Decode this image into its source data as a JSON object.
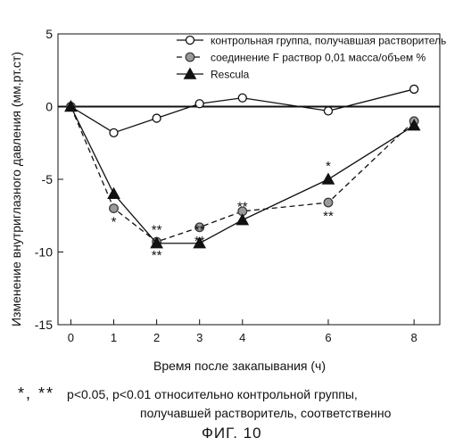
{
  "chart_data": {
    "type": "line",
    "xlabel": "Время после закапывания (ч)",
    "ylabel": "Изменение внутриглазного давления (мм.рт.ст)",
    "xlim": [
      -0.3,
      8.6
    ],
    "ylim": [
      -15,
      5
    ],
    "x_ticks": [
      0,
      1,
      2,
      3,
      4,
      6,
      8
    ],
    "y_ticks": [
      5,
      0,
      -5,
      -10,
      -15
    ],
    "y_tick_labels": [
      "5",
      "0",
      "-5",
      "-10",
      "-15"
    ],
    "grid": false,
    "legend_position": "top-right",
    "series": [
      {
        "name": "контрольная группа, получавшая растворитель",
        "marker": "open-circle",
        "line": "solid",
        "x": [
          0,
          1,
          2,
          3,
          4,
          6,
          8
        ],
        "y": [
          0,
          -1.8,
          -0.8,
          0.2,
          0.6,
          -0.3,
          1.2
        ],
        "sig": [
          "",
          "",
          "",
          "",
          "",
          "",
          ""
        ]
      },
      {
        "name": "соединение F раствор 0,01 масса/объем %",
        "marker": "shaded-circle",
        "line": "dashed",
        "x": [
          0,
          1,
          2,
          3,
          4,
          6,
          8
        ],
        "y": [
          0,
          -7.0,
          -9.3,
          -8.3,
          -7.2,
          -6.6,
          -1.0
        ],
        "sig": [
          "",
          "*",
          "**",
          "**",
          "**",
          "**",
          ""
        ]
      },
      {
        "name": "Rescula",
        "marker": "filled-triangle",
        "line": "solid",
        "x": [
          0,
          1,
          2,
          3,
          4,
          6,
          8
        ],
        "y": [
          0,
          -6.0,
          -9.4,
          -9.4,
          -7.8,
          -5.0,
          -1.3
        ],
        "sig": [
          "",
          "",
          "**",
          "**",
          "**",
          "*",
          ""
        ]
      }
    ]
  },
  "footnote": {
    "stars": "*, **",
    "line1": "p<0.05, p<0.01 относительно контрольной группы,",
    "line2": "получавшей растворитель, соответственно"
  },
  "figure_label": "ФИГ. 10"
}
